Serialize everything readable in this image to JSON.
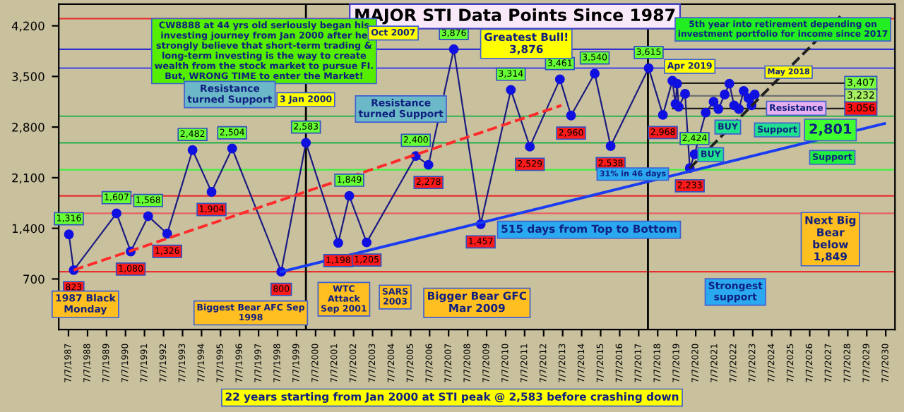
{
  "chart_data": {
    "type": "line",
    "title": "MAJOR STI Data Points Since 1987",
    "x": [
      "1987-07",
      "1987-10",
      "1990-01",
      "1990-10",
      "1991-09",
      "1992-09",
      "1994-01",
      "1995-01",
      "1996-02",
      "1998-09",
      "2000-01-03",
      "2001-09",
      "2002-04",
      "2003-03",
      "2005-10",
      "2006-06",
      "2007-10",
      "2009-03",
      "2010-10",
      "2011-10",
      "2013-05",
      "2013-12",
      "2015-03",
      "2016-01",
      "2018-01",
      "2018-10",
      "2019-04",
      "2019-06",
      "2019-07",
      "2019-08",
      "2019-12",
      "2020-03",
      "2020-06",
      "2021-01",
      "2021-06",
      "2021-09",
      "2022-01",
      "2022-04",
      "2022-07",
      "2022-10",
      "2023-01",
      "2023-04",
      "2023-06",
      "2023-08"
    ],
    "series": [
      {
        "color": "#1c1c80",
        "marker": "circle",
        "line_style": "solid",
        "values": [
          1316,
          823,
          1607,
          1080,
          1568,
          1326,
          2482,
          1904,
          2504,
          800,
          2583,
          1198,
          1849,
          1205,
          2400,
          2278,
          3876,
          1457,
          3314,
          2529,
          3461,
          2960,
          3540,
          2538,
          3615,
          2968,
          3440,
          3120,
          3400,
          3080,
          3260,
          2233,
          2424,
          3000,
          3150,
          3050,
          3250,
          3400,
          3100,
          3050,
          3300,
          3200,
          3100,
          3250
        ],
        "value_labels": [
          "1,316",
          "823",
          "1,607",
          "1,080",
          "1,568",
          "1,326",
          "2,482",
          "1,904",
          "2,504",
          "800",
          "2,583",
          "1,198",
          "1,849",
          "1,205",
          "2,400",
          "2,278",
          "3,876",
          "1,457",
          "3,314",
          "2,529",
          "3,461",
          "2,960",
          "3,540",
          "2,538",
          "3,615",
          "2,968",
          null,
          null,
          null,
          null,
          null,
          "2,233",
          "2,424",
          null,
          null,
          null,
          null,
          null,
          null,
          null,
          null,
          null,
          null,
          null
        ]
      },
      {
        "color": "#1a3cf0",
        "marker": "none",
        "line_style": "solid",
        "x": [
          "1998-09",
          "2030-06"
        ],
        "values": [
          800,
          2850
        ]
      },
      {
        "color": "#ff2a2a",
        "marker": "none",
        "line_style": "dashed",
        "x": [
          "1987-10",
          "2013-06"
        ],
        "values": [
          823,
          3100
        ]
      },
      {
        "color": "#202020",
        "marker": "none",
        "line_style": "dashed",
        "x": [
          "2020-03",
          "2028-03"
        ],
        "values": [
          2233,
          4350
        ]
      }
    ],
    "xlim": [
      "1987-01-01",
      "2030-12-31"
    ],
    "xticks": [
      {
        "value": "1987-07-07",
        "label": "7/7/1987"
      },
      {
        "value": "1988-07-07",
        "label": "7/7/1988"
      },
      {
        "value": "1989-07-07",
        "label": "7/7/1989"
      },
      {
        "value": "1990-07-07",
        "label": "7/7/1990"
      },
      {
        "value": "1991-07-07",
        "label": "7/7/1991"
      },
      {
        "value": "1992-07-07",
        "label": "7/7/1992"
      },
      {
        "value": "1993-07-07",
        "label": "7/7/1993"
      },
      {
        "value": "1994-07-07",
        "label": "7/7/1994"
      },
      {
        "value": "1995-07-07",
        "label": "7/7/1995"
      },
      {
        "value": "1996-07-07",
        "label": "7/7/1996"
      },
      {
        "value": "1997-07-07",
        "label": "7/7/1997"
      },
      {
        "value": "1998-07-07",
        "label": "7/7/1998"
      },
      {
        "value": "1999-07-07",
        "label": "7/7/1999"
      },
      {
        "value": "2000-07-07",
        "label": "7/7/2000"
      },
      {
        "value": "2001-07-07",
        "label": "7/7/2001"
      },
      {
        "value": "2002-07-07",
        "label": "7/7/2002"
      },
      {
        "value": "2003-07-07",
        "label": "7/7/2003"
      },
      {
        "value": "2004-07-07",
        "label": "7/7/2004"
      },
      {
        "value": "2005-07-07",
        "label": "7/7/2005"
      },
      {
        "value": "2006-07-07",
        "label": "7/7/2006"
      },
      {
        "value": "2007-07-07",
        "label": "7/7/2007"
      },
      {
        "value": "2008-07-07",
        "label": "7/7/2008"
      },
      {
        "value": "2009-07-07",
        "label": "7/7/2009"
      },
      {
        "value": "2010-07-07",
        "label": "7/7/2010"
      },
      {
        "value": "2011-07-07",
        "label": "7/7/2011"
      },
      {
        "value": "2012-07-07",
        "label": "7/7/2012"
      },
      {
        "value": "2013-07-07",
        "label": "7/7/2013"
      },
      {
        "value": "2014-07-07",
        "label": "7/7/2014"
      },
      {
        "value": "2015-07-07",
        "label": "7/7/2015"
      },
      {
        "value": "2016-07-07",
        "label": "7/7/2016"
      },
      {
        "value": "2017-07-07",
        "label": "7/7/2017"
      },
      {
        "value": "2018-07-07",
        "label": "7/7/2018"
      },
      {
        "value": "2019-07-07",
        "label": "7/7/2019"
      },
      {
        "value": "2020-07-07",
        "label": "7/7/2020"
      },
      {
        "value": "2021-07-07",
        "label": "7/7/2021"
      },
      {
        "value": "2022-07-07",
        "label": "7/7/2022"
      },
      {
        "value": "2023-07-07",
        "label": "7/7/2023"
      },
      {
        "value": "2024-07-07",
        "label": "7/7/2024"
      },
      {
        "value": "2025-07-07",
        "label": "7/7/2025"
      },
      {
        "value": "2026-07-07",
        "label": "7/7/2026"
      },
      {
        "value": "2027-07-07",
        "label": "7/7/2027"
      },
      {
        "value": "2028-07-07",
        "label": "7/7/2028"
      },
      {
        "value": "2029-07-07",
        "label": "7/7/2029"
      },
      {
        "value": "2030-07-07",
        "label": "7/7/2030"
      }
    ],
    "ylim": [
      0,
      4500
    ],
    "yticks": [
      {
        "value": 700,
        "label": "700"
      },
      {
        "value": 1400,
        "label": "1,400"
      },
      {
        "value": 2100,
        "label": "2,100"
      },
      {
        "value": 2800,
        "label": "2,800"
      },
      {
        "value": 3500,
        "label": "3,500"
      },
      {
        "value": 4200,
        "label": "4,200"
      }
    ],
    "ref_lines": [
      {
        "axis": "y",
        "value": 4300,
        "color": "#e83030"
      },
      {
        "axis": "y",
        "value": 3876,
        "color": "#3030d0"
      },
      {
        "axis": "y",
        "value": 3615,
        "color": "#5050e0"
      },
      {
        "axis": "y",
        "value": 2950,
        "color": "#30b050"
      },
      {
        "axis": "y",
        "value": 2583,
        "color": "#30b050"
      },
      {
        "axis": "y",
        "value": 2211,
        "color": "#40f040"
      },
      {
        "axis": "y",
        "value": 1849,
        "color": "#e83030"
      },
      {
        "axis": "y",
        "value": 1607,
        "color": "#e86060"
      },
      {
        "axis": "y",
        "value": 800,
        "color": "#e83030"
      },
      {
        "axis": "y",
        "value": 3407,
        "color": "#202020",
        "label": "3,407"
      },
      {
        "axis": "y",
        "value": 3232,
        "color": "#707070",
        "label": "3,232"
      },
      {
        "axis": "y",
        "value": 3056,
        "color": "#202020",
        "label": "3,056"
      },
      {
        "axis": "x",
        "value": "2000-01-03",
        "color": "#000000"
      },
      {
        "axis": "x",
        "value": "2018-01-01",
        "color": "#000000"
      }
    ],
    "annotations": [
      "CW8888 at 44 yrs old seriously began his investing journey from Jan 2000 after he strongly believe that short-term trading & long-term investing is the way to create wealth from the stock market to pursue FI. But, WRONG TIME to enter the Market!",
      "5th year into retirement depending on investment portfolio for income since 2017",
      "Resistance turned Support",
      "3 Jan 2000",
      "Resistance turned Support",
      "Oct 2007",
      "Greatest Bull!\n3,876",
      "1987 Black Monday",
      "Biggest Bear AFC Sep 1998",
      "WTC Attack Sep 2001",
      "SARS 2003",
      "Bigger Bear GFC Mar 2009",
      "515 days from Top to Bottom",
      "31% in 46 days",
      "Next Big Bear below 1,849",
      "Strongest support",
      "22 years starting from Jan 2000 at STI peak @ 2,583 before crashing down",
      "Apr 2019",
      "May 2018",
      "BUY",
      "BUY",
      "Support",
      "Support",
      "Resistance",
      "2,801"
    ],
    "grid": false,
    "legend": false
  }
}
